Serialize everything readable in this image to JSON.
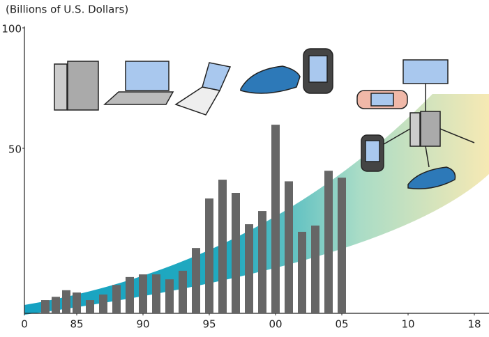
{
  "chart_data": {
    "type": "bar",
    "y_label": "(Billions of U.S. Dollars)",
    "x": [
      1982,
      1983,
      1984,
      1985,
      1986,
      1987,
      1988,
      1989,
      1990,
      1991,
      1992,
      1993,
      1994,
      1995,
      1996,
      1997,
      1998,
      1999,
      2000,
      2001,
      2002,
      2003,
      2004,
      2005
    ],
    "values": [
      4,
      5,
      7,
      6.3,
      4,
      5.7,
      8.6,
      11,
      11.8,
      11.8,
      10.3,
      12.9,
      19.8,
      34.8,
      40.5,
      36.5,
      27,
      31,
      59.8,
      40,
      24.7,
      26.6,
      43.2,
      41.1
    ],
    "color": "#666666",
    "xlim": [
      1980,
      2018
    ],
    "xticks": [
      {
        "value": 1980,
        "label": "0"
      },
      {
        "value": 1985,
        "label": "85"
      },
      {
        "value": 1990,
        "label": "90"
      },
      {
        "value": 1995,
        "label": "95"
      },
      {
        "value": 2000,
        "label": "00"
      },
      {
        "value": 2005,
        "label": "05"
      },
      {
        "value": 2010,
        "label": "10"
      },
      {
        "value": 2018,
        "label": "18"
      }
    ],
    "ylim": [
      0,
      100
    ],
    "yticks": [
      50,
      100
    ]
  }
}
